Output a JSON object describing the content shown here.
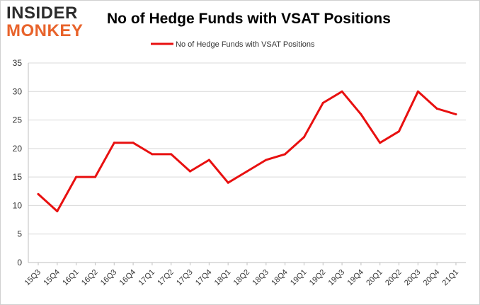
{
  "logo": {
    "line1": "INSIDER",
    "line2": "MONKEY"
  },
  "colors": {
    "series": "#e81010",
    "grid": "#d9d9d9",
    "logo_accent": "#e8632b"
  },
  "chart_data": {
    "type": "line",
    "title": "No of Hedge Funds with VSAT Positions",
    "xlabel": "",
    "ylabel": "",
    "ylim": [
      0,
      35
    ],
    "yticks": [
      0,
      5,
      10,
      15,
      20,
      25,
      30,
      35
    ],
    "grid": true,
    "legend_position": "top-center",
    "categories": [
      "15Q3",
      "15Q4",
      "16Q1",
      "16Q2",
      "16Q3",
      "16Q4",
      "17Q1",
      "17Q2",
      "17Q3",
      "17Q4",
      "18Q1",
      "18Q2",
      "18Q3",
      "18Q4",
      "19Q1",
      "19Q2",
      "19Q3",
      "19Q4",
      "20Q1",
      "20Q2",
      "20Q3",
      "20Q4",
      "21Q1"
    ],
    "series": [
      {
        "name": "No of Hedge Funds with VSAT Positions",
        "color": "#e81010",
        "values": [
          12,
          9,
          15,
          15,
          21,
          21,
          19,
          19,
          16,
          18,
          14,
          16,
          18,
          19,
          22,
          28,
          30,
          26,
          21,
          23,
          30,
          27,
          26
        ]
      }
    ]
  }
}
